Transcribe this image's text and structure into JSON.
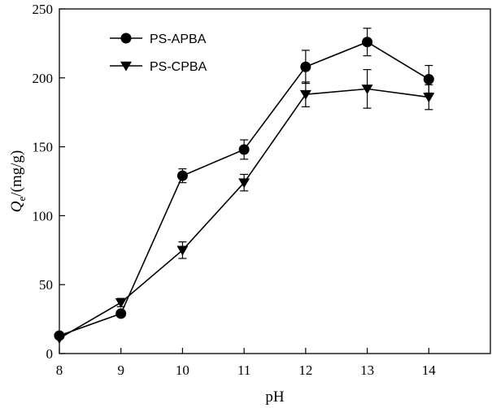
{
  "chart_data": {
    "type": "line",
    "xlabel": "pH",
    "ylabel_main": "Q",
    "ylabel_sub": "e",
    "ylabel_unit": "/(mg/g)",
    "x": [
      8,
      9,
      10,
      11,
      12,
      13,
      14
    ],
    "xlim": [
      8,
      15
    ],
    "ylim": [
      0,
      250
    ],
    "x_ticks": [
      "8",
      "9",
      "10",
      "11",
      "12",
      "13",
      "14"
    ],
    "y_ticks": [
      "0",
      "50",
      "100",
      "150",
      "200",
      "250"
    ],
    "legend_position": "top-left",
    "grid": false,
    "series": [
      {
        "name": "PS-APBA",
        "marker": "circle",
        "values": [
          13,
          29,
          129,
          148,
          208,
          226,
          199
        ],
        "errors": [
          1,
          2,
          5,
          7,
          12,
          10,
          10
        ]
      },
      {
        "name": "PS-CPBA",
        "marker": "triangle-down",
        "values": [
          11,
          37,
          75,
          124,
          188,
          192,
          186
        ],
        "errors": [
          1,
          3,
          6,
          6,
          9,
          14,
          9
        ]
      }
    ]
  }
}
